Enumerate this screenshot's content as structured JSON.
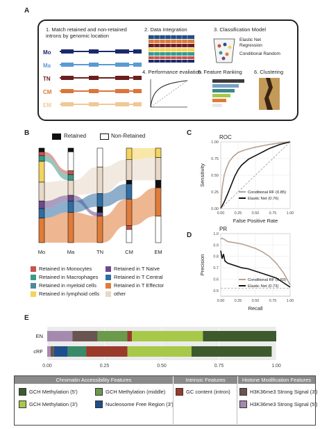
{
  "panel_labels": {
    "a": "A",
    "b": "B",
    "c": "C",
    "d": "D",
    "e": "E"
  },
  "panelA": {
    "steps": [
      {
        "num": "1.",
        "text": "Match retained and non-retained introns by genomic location"
      },
      {
        "num": "2.",
        "text": "Data Integration"
      },
      {
        "num": "3.",
        "text": "Classification Model"
      },
      {
        "num": "4.",
        "text": "Performance evaliation"
      },
      {
        "num": "5.",
        "text": "Feature Ranking"
      },
      {
        "num": "6.",
        "text": "Clustering"
      }
    ],
    "cell_types": [
      {
        "name": "Mo",
        "color": "#1b2a6b"
      },
      {
        "name": "Ma",
        "color": "#5a9ad4"
      },
      {
        "name": "TN",
        "color": "#6b1f1f"
      },
      {
        "name": "CM",
        "color": "#d9773a"
      },
      {
        "name": "EM",
        "color": "#f0c896"
      }
    ],
    "models": [
      "Elastic Net Regression",
      "Conditional Random"
    ],
    "ranking_colors": [
      "#3d3d3d",
      "#7aa0c8",
      "#3b8a8a",
      "#a7c94a",
      "#e07b39",
      "#e7e7e7"
    ]
  },
  "panelB": {
    "legend_top": {
      "retained": "Retained",
      "non_retained": "Non-Retained"
    },
    "axis": [
      "Mo",
      "Ma",
      "TN",
      "CM",
      "EM"
    ],
    "legend": [
      {
        "label": "Retained in Monocytes",
        "color": "#c9534b"
      },
      {
        "label": "Retained in T Naïve",
        "color": "#6b4a8c"
      },
      {
        "label": "Retained in Macrophages",
        "color": "#3a9a8a"
      },
      {
        "label": "Retained in T Central",
        "color": "#2f6da3"
      },
      {
        "label": "Retained in myeloid cells",
        "color": "#4a8a9a"
      },
      {
        "label": "Retained in T Effector",
        "color": "#e07b39"
      },
      {
        "label": "Retained in lymphoid cells",
        "color": "#f4d35e"
      },
      {
        "label": "other",
        "color": "#e8d8c8"
      }
    ],
    "columns": [
      {
        "name": "Mo",
        "segments": [
          [
            "#111111",
            4
          ],
          [
            "#c9534b",
            4
          ],
          [
            "#3a9a8a",
            6
          ],
          [
            "#f4d35e",
            22
          ],
          [
            "#e8d8c8",
            20
          ],
          [
            "#6b4a8c",
            8
          ],
          [
            "#2f6da3",
            10
          ],
          [
            "#e07b39",
            26
          ]
        ]
      },
      {
        "name": "Ma",
        "segments": [
          [
            "#111111",
            4
          ],
          [
            "#ffffff",
            20
          ],
          [
            "#c9534b",
            4
          ],
          [
            "#3a9a8a",
            6
          ],
          [
            "#e8d8c8",
            16
          ],
          [
            "#6b4a8c",
            6
          ],
          [
            "#2f6da3",
            12
          ],
          [
            "#e07b39",
            32
          ]
        ]
      },
      {
        "name": "TN",
        "segments": [
          [
            "#ffffff",
            20
          ],
          [
            "#e8d8c8",
            28
          ],
          [
            "#2f6da3",
            14
          ],
          [
            "#111111",
            6
          ],
          [
            "#6b4a8c",
            4
          ],
          [
            "#e07b39",
            28
          ]
        ]
      },
      {
        "name": "CM",
        "segments": [
          [
            "#f4d35e",
            12
          ],
          [
            "#e8d8c8",
            22
          ],
          [
            "#111111",
            4
          ],
          [
            "#2f6da3",
            16
          ],
          [
            "#e07b39",
            28
          ],
          [
            "#c9534b",
            4
          ],
          [
            "#ffffff",
            14
          ]
        ]
      },
      {
        "name": "EM",
        "segments": [
          [
            "#f4d35e",
            10
          ],
          [
            "#e8d8c8",
            24
          ],
          [
            "#111111",
            8
          ],
          [
            "#e07b39",
            30
          ],
          [
            "#ffffff",
            28
          ]
        ]
      }
    ]
  },
  "chart_data": [
    {
      "panel": "C",
      "type": "line",
      "title": "ROC",
      "xlabel": "False Positive Rate",
      "ylabel": "Sensitivity",
      "xlim": [
        0,
        1
      ],
      "ylim": [
        0,
        1
      ],
      "xticks": [
        "0.00",
        "0.25",
        "0.50",
        "0.75",
        "1.00"
      ],
      "yticks": [
        "0.00",
        "0.25",
        "0.50",
        "0.75",
        "1.00"
      ],
      "series": [
        {
          "name": "Conditional RF (0.85)",
          "color": "#b8a090",
          "x": [
            0,
            0.02,
            0.05,
            0.08,
            0.12,
            0.18,
            0.25,
            0.35,
            0.5,
            0.7,
            0.9,
            1
          ],
          "y": [
            0,
            0.3,
            0.5,
            0.6,
            0.7,
            0.78,
            0.84,
            0.88,
            0.92,
            0.96,
            0.99,
            1
          ]
        },
        {
          "name": "Elastic Net (0.76)",
          "color": "#111111",
          "x": [
            0,
            0.05,
            0.1,
            0.15,
            0.2,
            0.25,
            0.3,
            0.4,
            0.55,
            0.7,
            0.85,
            1
          ],
          "y": [
            0,
            0.1,
            0.22,
            0.35,
            0.48,
            0.58,
            0.65,
            0.74,
            0.82,
            0.9,
            0.96,
            1
          ]
        },
        {
          "name": "",
          "color": "#999999",
          "dashed": true,
          "x": [
            0,
            1
          ],
          "y": [
            0,
            1
          ]
        }
      ],
      "legend": "bottom-right"
    },
    {
      "panel": "D",
      "type": "line",
      "title": "PR",
      "xlabel": "Recall",
      "ylabel": "Precision",
      "xlim": [
        0,
        1
      ],
      "ylim": [
        0.45,
        1
      ],
      "xticks": [
        "0.00",
        "0.25",
        "0.50",
        "0.75",
        "1.00"
      ],
      "yticks": [
        "0.5",
        "0.6",
        "0.7",
        "0.8",
        "0.9",
        "1.0"
      ],
      "series": [
        {
          "name": "Conditional RF (0.83)",
          "color": "#b8a090",
          "x": [
            0,
            0.02,
            0.05,
            0.1,
            0.2,
            0.3,
            0.4,
            0.5,
            0.6,
            0.7,
            0.8,
            0.9,
            1
          ],
          "y": [
            0.95,
            0.96,
            0.95,
            0.93,
            0.92,
            0.91,
            0.89,
            0.87,
            0.84,
            0.8,
            0.74,
            0.66,
            0.55
          ]
        },
        {
          "name": "Elastic Net (0.73)",
          "color": "#111111",
          "x": [
            0,
            0.02,
            0.04,
            0.06,
            0.1,
            0.2,
            0.3,
            0.4,
            0.5,
            0.6,
            0.7,
            0.8,
            0.9,
            1
          ],
          "y": [
            0.85,
            0.78,
            0.82,
            0.76,
            0.74,
            0.72,
            0.7,
            0.69,
            0.67,
            0.65,
            0.63,
            0.61,
            0.57,
            0.53
          ]
        },
        {
          "name": "",
          "color": "#aaaaaa",
          "dashed": true,
          "x": [
            0,
            1
          ],
          "y": [
            0.52,
            0.52
          ]
        }
      ],
      "legend": "bottom-right"
    },
    {
      "panel": "E",
      "type": "bar",
      "orientation": "horizontal",
      "stacked": true,
      "categories": [
        "EN",
        "cRF"
      ],
      "xlim": [
        0,
        1
      ],
      "xticks": [
        "0.00",
        "0.25",
        "0.50",
        "0.75",
        "1.00"
      ],
      "series": [
        {
          "name": "H3K36me3 Strong Signal (3')",
          "color": "#a58ab0",
          "values": [
            0.11,
            0.015
          ]
        },
        {
          "name": "H3K36me3 Strong Signal (5')",
          "color": "#6a5450",
          "values": [
            0.11,
            0.015
          ]
        },
        {
          "name": "GCH Methylation (middle)",
          "color": "#6a9a4a",
          "values": [
            0.13,
            0.0
          ]
        },
        {
          "name": "GC content (intron)",
          "color": "#9a3a2a",
          "values": [
            0.02,
            0.18
          ]
        },
        {
          "name": "GCH Methylation (3')",
          "color": "#a7c94a",
          "values": [
            0.31,
            0.28
          ]
        },
        {
          "name": "GCH Methylation (5')",
          "color": "#3d5a2d",
          "values": [
            0.32,
            0.35
          ]
        },
        {
          "name": "Nucleosome Free Region (3')",
          "color": "#1e4f8a",
          "values": [
            0.0,
            0.06
          ]
        },
        {
          "name": "",
          "color": "#3a8a6a",
          "values": [
            0.0,
            0.08
          ]
        }
      ]
    }
  ],
  "panelE_legend": {
    "groups": [
      {
        "title": "Chromatin Accessibility Features",
        "items": [
          {
            "label": "GCH Methylation (5')",
            "color": "#3d5a2d"
          },
          {
            "label": "GCH Methylation (middle)",
            "color": "#6a9a4a"
          },
          {
            "label": "GCH Methylation (3')",
            "color": "#a7c94a"
          },
          {
            "label": "Nucleosome Free Region (3')",
            "color": "#1e4f8a"
          }
        ]
      },
      {
        "title": "Intrinsic Features",
        "items": [
          {
            "label": "GC content (intron)",
            "color": "#9a3a2a"
          }
        ]
      },
      {
        "title": "Histone Modification Features",
        "items": [
          {
            "label": "H3K36me3 Strong Signal (3')",
            "color": "#6a5450"
          },
          {
            "label": "H3K36me3 Strong Signal (5')",
            "color": "#a58ab0"
          }
        ]
      }
    ]
  }
}
